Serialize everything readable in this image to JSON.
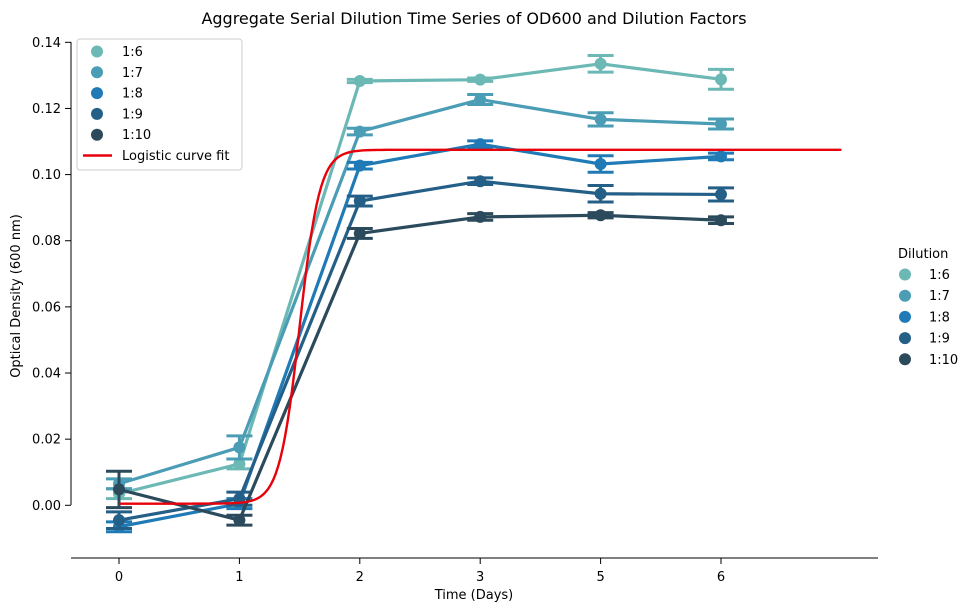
{
  "chart_data": {
    "type": "line",
    "title": "Aggregate Serial Dilution Time Series of OD600 and Dilution Factors",
    "xlabel": "Time (Days)",
    "ylabel": "Optical Density (600 nm)",
    "categories": [
      "0",
      "1",
      "2",
      "3",
      "5",
      "6"
    ],
    "ylim": [
      -0.016,
      0.14
    ],
    "yticks": [
      0.0,
      0.02,
      0.04,
      0.06,
      0.08,
      0.1,
      0.12,
      0.14
    ],
    "ytick_labels": [
      "0.00",
      "0.02",
      "0.04",
      "0.06",
      "0.08",
      "0.10",
      "0.12",
      "0.14"
    ],
    "grid": false,
    "series": [
      {
        "name": "1:6",
        "color": "#6bb8b4",
        "values": [
          0.0035,
          0.0125,
          0.1283,
          0.1287,
          0.1335,
          0.1288
        ],
        "error": [
          0.0015,
          0.0015,
          0.0005,
          0.0005,
          0.0025,
          0.003
        ]
      },
      {
        "name": "1:7",
        "color": "#4a9db5",
        "values": [
          0.0065,
          0.0175,
          0.113,
          0.1227,
          0.1167,
          0.1153
        ],
        "error": [
          0.0015,
          0.0035,
          0.001,
          0.0015,
          0.002,
          0.0015
        ]
      },
      {
        "name": "1:8",
        "color": "#1f7ab5",
        "values": [
          -0.0065,
          0.0005,
          0.1027,
          0.1092,
          0.1032,
          0.1055
        ],
        "error": [
          0.0015,
          0.0015,
          0.001,
          0.001,
          0.0025,
          0.001
        ]
      },
      {
        "name": "1:9",
        "color": "#245f88",
        "values": [
          -0.0045,
          0.002,
          0.092,
          0.098,
          0.0942,
          0.094
        ],
        "error": [
          0.0025,
          0.002,
          0.0015,
          0.001,
          0.0025,
          0.002
        ]
      },
      {
        "name": "1:10",
        "color": "#2b4a5c",
        "values": [
          0.0048,
          -0.0045,
          0.0822,
          0.0872,
          0.0877,
          0.0862
        ],
        "error": [
          0.0055,
          0.0015,
          0.0015,
          0.001,
          0.0008,
          0.001
        ]
      }
    ],
    "fit": {
      "name": "Logistic curve fit",
      "color": "#e8000b",
      "plateau": 0.1075,
      "baseline": 0.0005,
      "midpoint": 1.5,
      "steepness": 12,
      "x_start": 0,
      "x_end": 6
    },
    "legend_inner": {
      "placement": "top-left",
      "labels": [
        "1:6",
        "1:7",
        "1:8",
        "1:9",
        "1:10"
      ],
      "fit_label": "Logistic curve fit"
    },
    "legend_outer": {
      "placement": "right",
      "title": "Dilution",
      "labels": [
        "1:6",
        "1:7",
        "1:8",
        "1:9",
        "1:10"
      ]
    }
  }
}
